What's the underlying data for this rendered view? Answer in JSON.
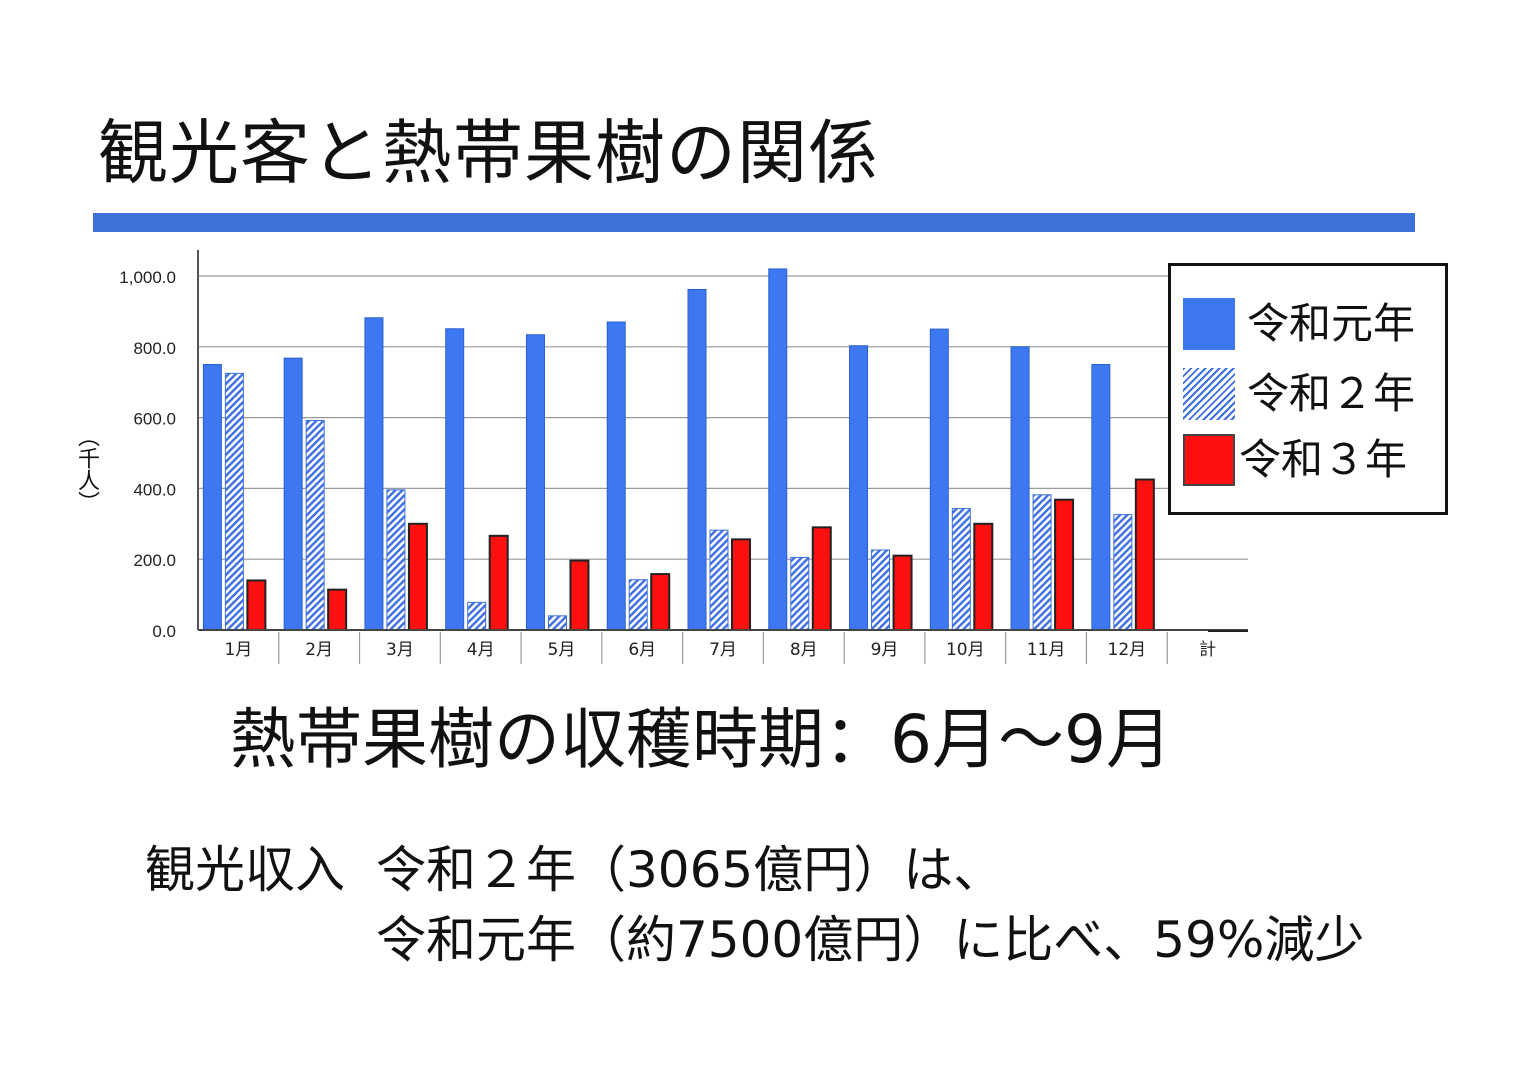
{
  "slide": {
    "title": "観光客と熱帯果樹の関係",
    "harvest_text": "熱帯果樹の収穫時期：6月〜9月",
    "income_label": "観光収入",
    "income_line1": "令和２年（3065億円）は、",
    "income_line2": "令和元年（約7500億円）に比べ、59%減少"
  },
  "colors": {
    "accent": "#3f72d8",
    "series_blue": "#3d78f2",
    "series_red": "#ff1010"
  },
  "chart_data": {
    "type": "bar",
    "ylabel": "（千人）",
    "ylim": [
      0,
      1000
    ],
    "yticks": [
      0,
      200,
      400,
      600,
      800,
      1000
    ],
    "ytick_labels": [
      "0.0",
      "200.0",
      "400.0",
      "600.0",
      "800.0",
      "1,000.0"
    ],
    "categories": [
      "1月",
      "2月",
      "3月",
      "4月",
      "5月",
      "6月",
      "7月",
      "8月",
      "9月",
      "10月",
      "11月",
      "12月",
      "計"
    ],
    "grid": true,
    "legend_position": "top-right",
    "series": [
      {
        "name": "令和元年",
        "values": [
          750,
          768,
          882,
          851,
          834,
          870,
          962,
          1020,
          803,
          850,
          800,
          750,
          null
        ]
      },
      {
        "name": "令和２年",
        "values": [
          725,
          592,
          396,
          78,
          40,
          142,
          282,
          205,
          226,
          343,
          382,
          326,
          null
        ]
      },
      {
        "name": "令和３年",
        "values": [
          140,
          114,
          300,
          266,
          196,
          158,
          256,
          290,
          210,
          300,
          368,
          425,
          null
        ]
      }
    ]
  }
}
